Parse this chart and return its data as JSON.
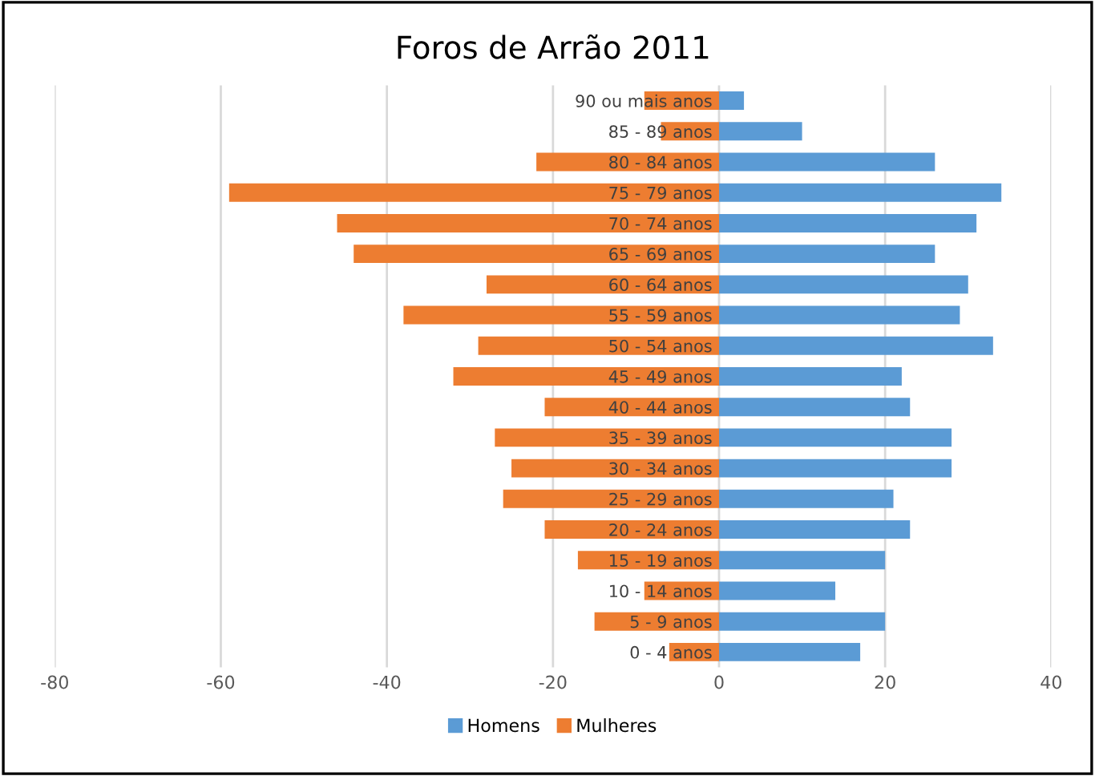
{
  "chart_data": {
    "type": "bar",
    "orientation": "horizontal",
    "title": "Foros de Arrão 2011",
    "categories": [
      "90 ou mais anos",
      "85 - 89 anos",
      "80 - 84 anos",
      "75 - 79 anos",
      "70 - 74 anos",
      "65 - 69 anos",
      "60 - 64 anos",
      "55 - 59 anos",
      "50 - 54 anos",
      "45 - 49 anos",
      "40 - 44 anos",
      "35 - 39 anos",
      "30 - 34 anos",
      "25 - 29 anos",
      "20 - 24 anos",
      "15 - 19 anos",
      "10 - 14 anos",
      "5 - 9 anos",
      "0 - 4 anos"
    ],
    "series": [
      {
        "name": "Homens",
        "color": "#5b9bd5",
        "values": [
          3,
          10,
          26,
          34,
          31,
          26,
          30,
          29,
          33,
          22,
          23,
          28,
          28,
          21,
          23,
          20,
          14,
          20,
          17
        ]
      },
      {
        "name": "Mulheres",
        "color": "#ed7d31",
        "values": [
          -9,
          -7,
          -22,
          -59,
          -46,
          -44,
          -28,
          -38,
          -29,
          -32,
          -21,
          -27,
          -25,
          -26,
          -21,
          -17,
          -9,
          -15,
          -6
        ]
      }
    ],
    "xlim": [
      -80,
      40
    ],
    "xticks": [
      -80,
      -60,
      -40,
      -20,
      0,
      20,
      40
    ],
    "stacked": true,
    "grid": "x",
    "legend": "bottom"
  }
}
